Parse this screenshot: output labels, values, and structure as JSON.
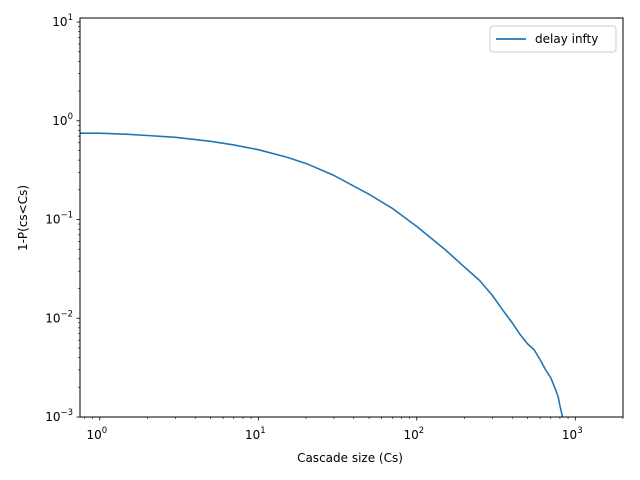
{
  "chart_data": {
    "type": "line",
    "title": "",
    "xlabel": "Cascade size (Cs)",
    "ylabel": "1-P(cs<Cs)",
    "xscale": "log",
    "yscale": "log",
    "xlim": [
      0.75,
      2000
    ],
    "ylim": [
      0.001,
      11
    ],
    "grid": false,
    "legend_position": "top-right",
    "x_ticks": [
      1,
      10,
      100,
      1000
    ],
    "x_tick_labels": [
      {
        "base": "10",
        "exp": "0"
      },
      {
        "base": "10",
        "exp": "1"
      },
      {
        "base": "10",
        "exp": "2"
      },
      {
        "base": "10",
        "exp": "3"
      }
    ],
    "y_ticks": [
      0.001,
      0.01,
      0.1,
      1,
      10
    ],
    "y_tick_labels": [
      {
        "base": "10",
        "exp": "−3"
      },
      {
        "base": "10",
        "exp": "−2"
      },
      {
        "base": "10",
        "exp": "−1"
      },
      {
        "base": "10",
        "exp": "0"
      },
      {
        "base": "10",
        "exp": "1"
      }
    ],
    "series": [
      {
        "name": "delay infty",
        "color": "#1f77b4",
        "x": [
          0.75,
          1,
          1.5,
          2,
          3,
          5,
          7,
          10,
          15,
          20,
          30,
          50,
          70,
          100,
          150,
          200,
          250,
          300,
          350,
          400,
          450,
          500,
          550,
          600,
          650,
          700,
          750,
          780,
          800,
          820,
          840
        ],
        "y": [
          0.75,
          0.75,
          0.73,
          0.71,
          0.68,
          0.62,
          0.57,
          0.51,
          0.43,
          0.37,
          0.28,
          0.18,
          0.13,
          0.085,
          0.05,
          0.033,
          0.024,
          0.017,
          0.012,
          0.009,
          0.0068,
          0.0055,
          0.0048,
          0.0038,
          0.003,
          0.0025,
          0.0019,
          0.0016,
          0.0013,
          0.0011,
          0.0009
        ]
      }
    ]
  }
}
